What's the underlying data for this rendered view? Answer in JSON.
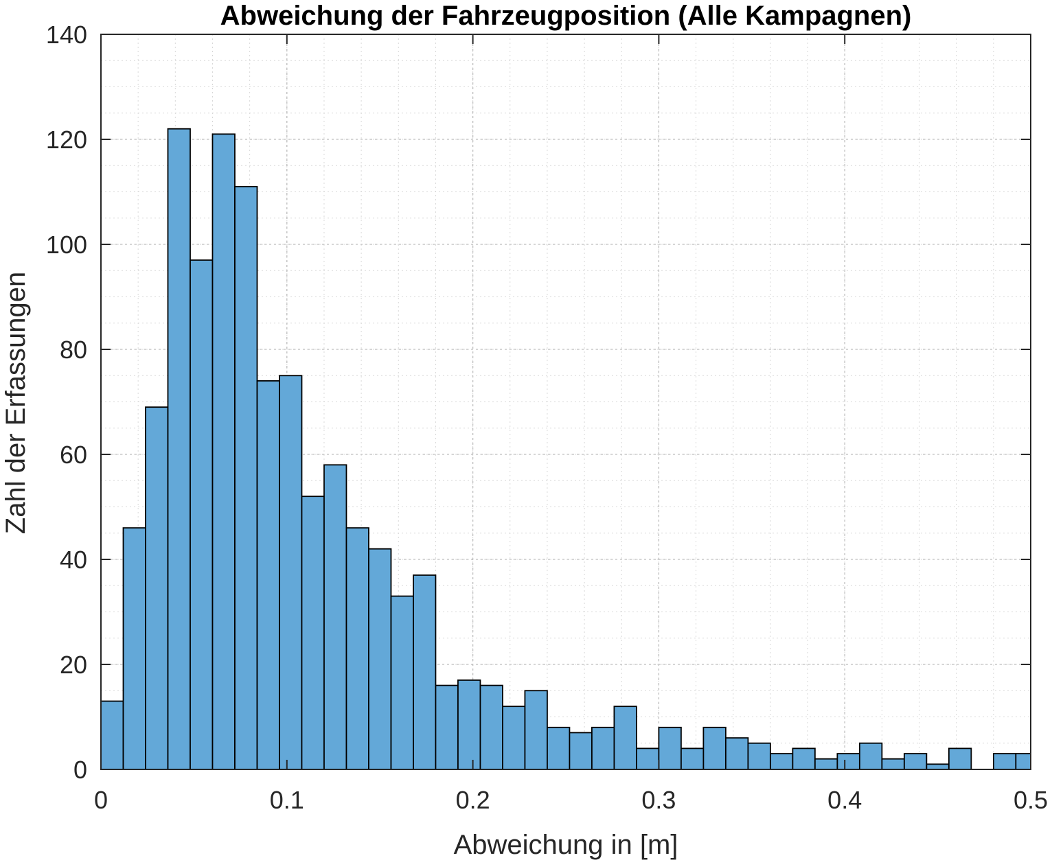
{
  "chart_data": {
    "type": "bar",
    "title": "Abweichung der Fahrzeugposition (Alle Kampagnen)",
    "xlabel": "Abweichung in [m]",
    "ylabel": "Zahl der Erfassungen",
    "xlim": [
      0,
      0.5
    ],
    "ylim": [
      0,
      140
    ],
    "bin_width": 0.012,
    "x_ticks": [
      0,
      0.1,
      0.2,
      0.3,
      0.4,
      0.5
    ],
    "x_tick_labels": [
      "0",
      "0.1",
      "0.2",
      "0.3",
      "0.4",
      "0.5"
    ],
    "y_ticks": [
      0,
      20,
      40,
      60,
      80,
      100,
      120,
      140
    ],
    "y_tick_labels": [
      "0",
      "20",
      "40",
      "60",
      "80",
      "100",
      "120",
      "140"
    ],
    "grid": true,
    "minor_grid": true,
    "bar_color": "#63a8d8",
    "edge_color": "#000000",
    "bin_starts": [
      0,
      0.012,
      0.024,
      0.036,
      0.048,
      0.06,
      0.072,
      0.084,
      0.096,
      0.108,
      0.12,
      0.132,
      0.144,
      0.156,
      0.168,
      0.18,
      0.192,
      0.204,
      0.216,
      0.228,
      0.24,
      0.252,
      0.264,
      0.276,
      0.288,
      0.3,
      0.312,
      0.324,
      0.336,
      0.348,
      0.36,
      0.372,
      0.384,
      0.396,
      0.408,
      0.42,
      0.432,
      0.444,
      0.456,
      0.468,
      0.48,
      0.492
    ],
    "values": [
      13,
      46,
      69,
      122,
      97,
      121,
      111,
      74,
      75,
      52,
      58,
      46,
      42,
      33,
      37,
      16,
      17,
      16,
      12,
      15,
      8,
      7,
      8,
      12,
      4,
      8,
      4,
      8,
      6,
      5,
      3,
      4,
      2,
      3,
      5,
      2,
      3,
      1,
      4,
      0,
      3,
      3
    ]
  }
}
